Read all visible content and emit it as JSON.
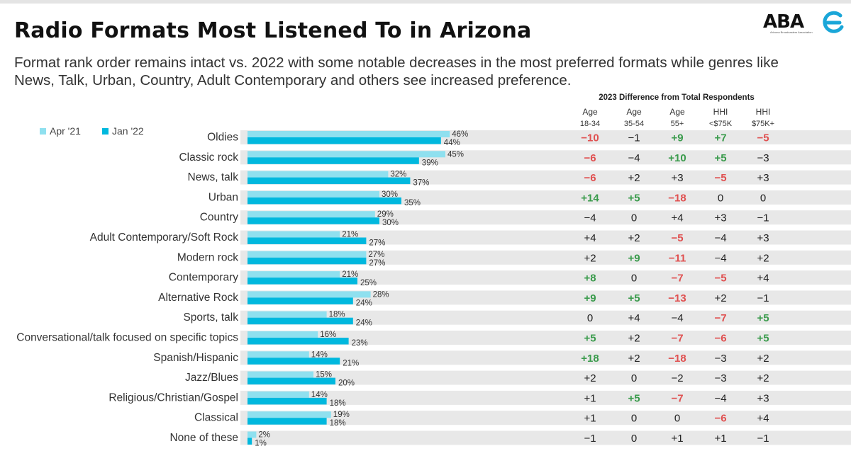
{
  "header": {
    "title": "Radio Formats Most Listened To in Arizona",
    "subtitle": "Format rank order remains intact vs. 2022 with some notable decreases in the most preferred formats while genres like News, Talk, Urban, Country, Adult Contemporary and others see increased preference.",
    "logo_text": "ABA",
    "logo_tagline": "Arizona Broadcasters Association"
  },
  "colors": {
    "series_apr21": "#8fe0ef",
    "series_jan22": "#00b8de",
    "positive": "#3a9b4c",
    "negative": "#e05050",
    "neutral": "#222222",
    "row_band": "#e8e8e8"
  },
  "chart_data": {
    "type": "bar",
    "orientation": "horizontal",
    "categories": [
      "Oldies",
      "Classic rock",
      "News, talk",
      "Urban",
      "Country",
      "Adult Contemporary/Soft Rock",
      "Modern rock",
      "Contemporary",
      "Alternative Rock",
      "Sports, talk",
      "Conversational/talk focused on specific topics",
      "Spanish/Hispanic",
      "Jazz/Blues",
      "Religious/Christian/Gospel",
      "Classical",
      "None of these"
    ],
    "series": [
      {
        "name": "Apr '21",
        "values": [
          46,
          45,
          32,
          30,
          29,
          21,
          27,
          21,
          28,
          18,
          16,
          14,
          15,
          14,
          19,
          2
        ]
      },
      {
        "name": "Jan '22",
        "values": [
          44,
          39,
          37,
          35,
          30,
          27,
          27,
          25,
          24,
          24,
          23,
          21,
          20,
          18,
          18,
          1
        ]
      }
    ],
    "value_suffix": "%",
    "legend": "top-left",
    "xlim": [
      0,
      100
    ]
  },
  "diff_table": {
    "title": "2023 Difference from Total Respondents",
    "columns": [
      {
        "line1": "Age",
        "line2": "18-34"
      },
      {
        "line1": "Age",
        "line2": "35-54"
      },
      {
        "line1": "Age",
        "line2": "55+"
      },
      {
        "line1": "HHI",
        "line2": "<$75K"
      },
      {
        "line1": "HHI",
        "line2": "$75K+"
      }
    ],
    "rows": [
      [
        "-10",
        "-1",
        "+9",
        "+7",
        "-5"
      ],
      [
        "-6",
        "-4",
        "+10",
        "+5",
        "-3"
      ],
      [
        "-6",
        "+2",
        "+3",
        "-5",
        "+3"
      ],
      [
        "+14",
        "+5",
        "-18",
        "0",
        "0"
      ],
      [
        "-4",
        "0",
        "+4",
        "+3",
        "-1"
      ],
      [
        "+4",
        "+2",
        "-5",
        "-4",
        "+3"
      ],
      [
        "+2",
        "+9",
        "-11",
        "-4",
        "+2"
      ],
      [
        "+8",
        "0",
        "-7",
        "-5",
        "+4"
      ],
      [
        "+9",
        "+5",
        "-13",
        "+2",
        "-1"
      ],
      [
        "0",
        "+4",
        "-4",
        "-7",
        "+5"
      ],
      [
        "+5",
        "+2",
        "-7",
        "-6",
        "+5"
      ],
      [
        "+18",
        "+2",
        "-18",
        "-3",
        "+2"
      ],
      [
        "+2",
        "0",
        "-2",
        "-3",
        "+2"
      ],
      [
        "+1",
        "+5",
        "-7",
        "-4",
        "+3"
      ],
      [
        "+1",
        "0",
        "0",
        "-6",
        "+4"
      ],
      [
        "-1",
        "0",
        "+1",
        "+1",
        "-1"
      ]
    ],
    "highlight": [
      [
        "neg",
        "",
        "pos",
        "pos",
        "neg"
      ],
      [
        "neg",
        "",
        "pos",
        "pos",
        ""
      ],
      [
        "neg",
        "",
        "",
        "neg",
        ""
      ],
      [
        "pos",
        "pos",
        "neg",
        "",
        ""
      ],
      [
        "",
        "",
        "",
        "",
        ""
      ],
      [
        "",
        "",
        "neg",
        "",
        ""
      ],
      [
        "",
        "pos",
        "neg",
        "",
        ""
      ],
      [
        "pos",
        "",
        "neg",
        "neg",
        ""
      ],
      [
        "pos",
        "pos",
        "neg",
        "",
        ""
      ],
      [
        "",
        "",
        "",
        "neg",
        "pos"
      ],
      [
        "pos",
        "",
        "neg",
        "neg",
        "pos"
      ],
      [
        "pos",
        "",
        "neg",
        "",
        ""
      ],
      [
        "",
        "",
        "",
        "",
        ""
      ],
      [
        "",
        "pos",
        "neg",
        "",
        ""
      ],
      [
        "",
        "",
        "",
        "neg",
        ""
      ],
      [
        "",
        "",
        "",
        "",
        ""
      ]
    ]
  }
}
